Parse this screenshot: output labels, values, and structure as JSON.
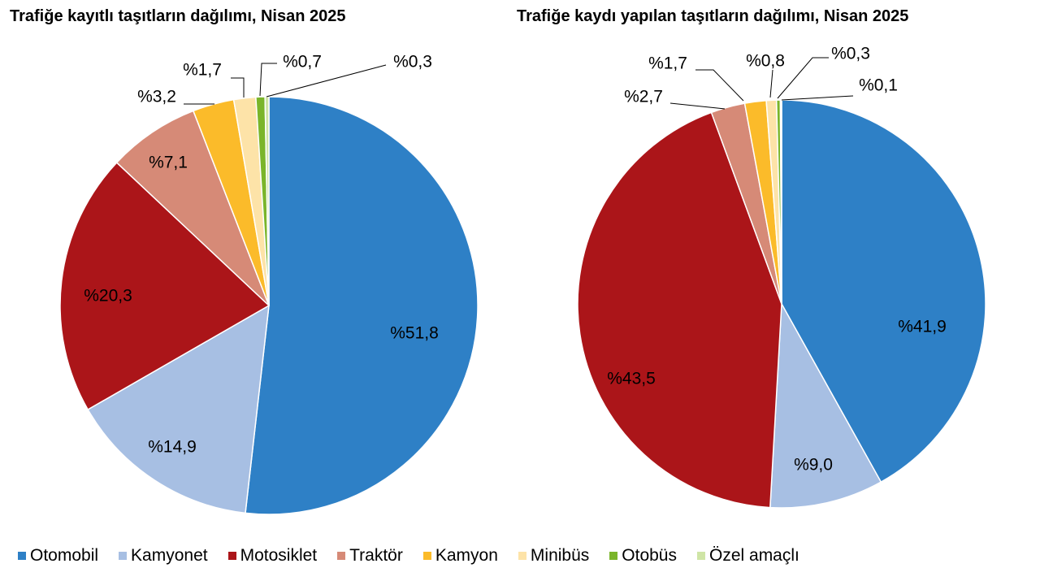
{
  "chart_data": [
    {
      "type": "pie",
      "title": "Trafiğe kayıtlı taşıtların dağılımı, Nisan 2025",
      "categories": [
        "Otomobil",
        "Kamyonet",
        "Motosiklet",
        "Traktör",
        "Kamyon",
        "Minibüs",
        "Otobüs",
        "Özel amaçlı"
      ],
      "values": [
        51.8,
        14.9,
        20.3,
        7.1,
        3.2,
        1.7,
        0.7,
        0.3
      ],
      "labels": [
        "%51,8",
        "%14,9",
        "%20,3",
        "%7,1",
        "%3,2",
        "%1,7",
        "%0,7",
        "%0,3"
      ]
    },
    {
      "type": "pie",
      "title": "Trafiğe kaydı yapılan taşıtların dağılımı, Nisan 2025",
      "categories": [
        "Otomobil",
        "Kamyonet",
        "Motosiklet",
        "Traktör",
        "Kamyon",
        "Minibüs",
        "Otobüs",
        "Özel amaçlı"
      ],
      "values": [
        41.9,
        9.0,
        43.5,
        2.7,
        1.7,
        0.8,
        0.3,
        0.1
      ],
      "labels": [
        "%41,9",
        "%9,0",
        "%43,5",
        "%2,7",
        "%1,7",
        "%0,8",
        "%0,3",
        "%0,1"
      ]
    }
  ],
  "legend": [
    {
      "label": "Otomobil",
      "color": "#2e80c6"
    },
    {
      "label": "Kamyonet",
      "color": "#a7bfe3"
    },
    {
      "label": "Motosiklet",
      "color": "#ab1519"
    },
    {
      "label": "Traktör",
      "color": "#d68a77"
    },
    {
      "label": "Kamyon",
      "color": "#fbbb2a"
    },
    {
      "label": "Minibüs",
      "color": "#fde3a8"
    },
    {
      "label": "Otobüs",
      "color": "#7ab52a"
    },
    {
      "label": "Özel amaçlı",
      "color": "#cfe5a6"
    }
  ]
}
